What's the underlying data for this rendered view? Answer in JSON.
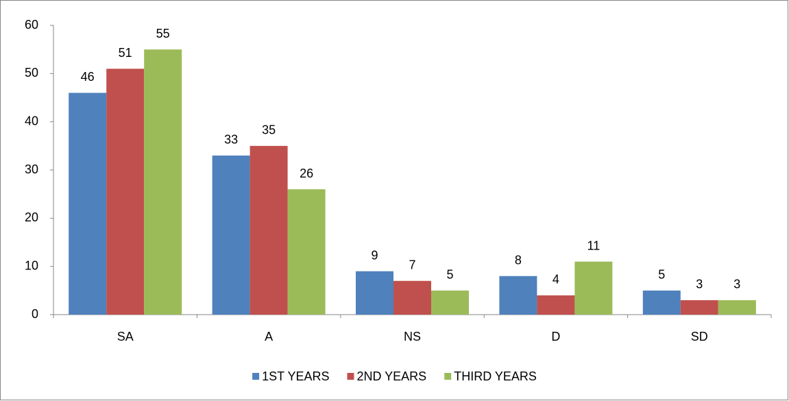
{
  "chart_data": {
    "type": "bar",
    "categories": [
      "SA",
      "A",
      "NS",
      "D",
      "SD"
    ],
    "series": [
      {
        "name": "1ST YEARS",
        "color": "#4f81bd",
        "values": [
          46,
          33,
          9,
          8,
          5
        ]
      },
      {
        "name": "2ND YEARS",
        "color": "#c0504d",
        "values": [
          51,
          35,
          7,
          4,
          3
        ]
      },
      {
        "name": "THIRD YEARS",
        "color": "#9bbb59",
        "values": [
          55,
          26,
          5,
          11,
          3
        ]
      }
    ],
    "ylim": [
      0,
      60
    ],
    "yticks": [
      0,
      10,
      20,
      30,
      40,
      50,
      60
    ],
    "grid": false,
    "legend": "bottom"
  }
}
